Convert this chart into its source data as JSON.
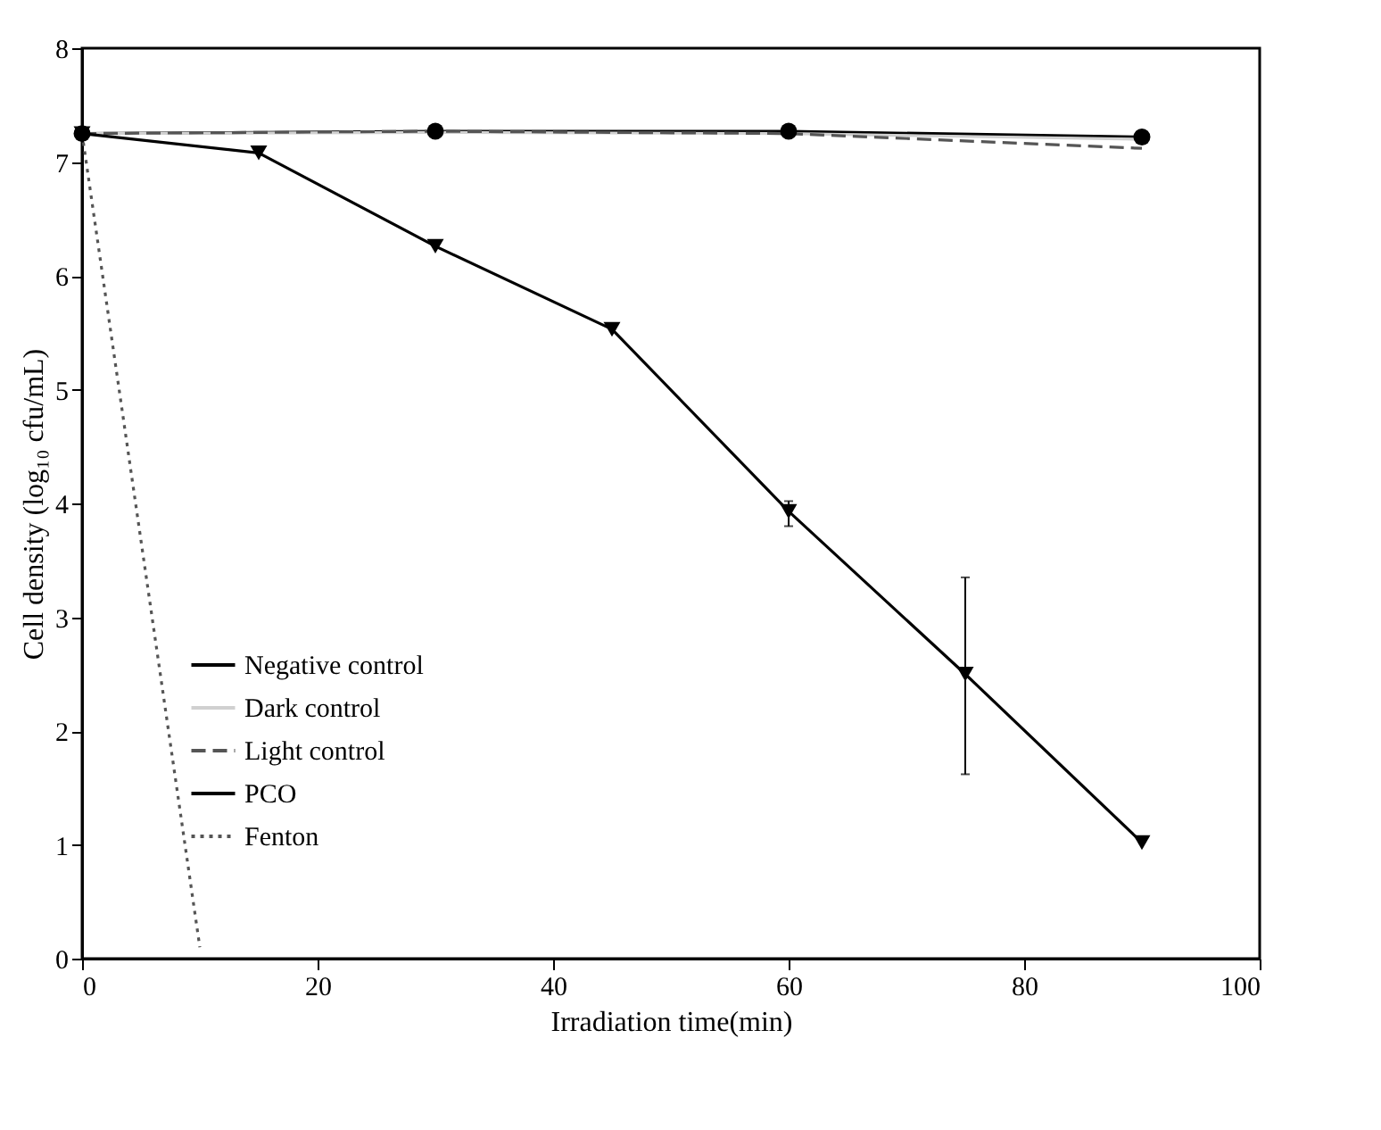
{
  "chart_data": {
    "type": "line",
    "xlabel": "Irradiation time(min)",
    "ylabel": "Cell density (log₁₀ cfu/mL)",
    "xlim": [
      0,
      100
    ],
    "xticks": [
      0,
      20,
      40,
      60,
      80,
      100
    ],
    "ylim": [
      0,
      8
    ],
    "yticks": [
      0,
      1,
      2,
      3,
      4,
      5,
      6,
      7,
      8
    ],
    "grid": false,
    "legend": "bottom left",
    "series": [
      {
        "name": "Negative control",
        "color": "#000000",
        "x": [
          0,
          30,
          60,
          90
        ],
        "values": [
          7.25,
          7.27,
          7.27,
          7.22
        ],
        "marker": "circle",
        "line_style": "solid"
      },
      {
        "name": "Dark control",
        "color": "#d0d0d0",
        "x": [
          0,
          30,
          60,
          90
        ],
        "values": [
          7.25,
          7.26,
          7.25,
          7.2
        ],
        "marker": "none",
        "line_style": "solid"
      },
      {
        "name": "Light control",
        "color": "#555555",
        "x": [
          0,
          30,
          60,
          90
        ],
        "values": [
          7.25,
          7.27,
          7.25,
          7.12
        ],
        "marker": "none",
        "line_style": "dashed"
      },
      {
        "name": "PCO",
        "color": "#000000",
        "x": [
          0,
          15,
          30,
          45,
          60,
          75,
          90
        ],
        "values": [
          7.25,
          7.08,
          6.26,
          5.53,
          3.93,
          2.5,
          1.02
        ],
        "marker": "triangle",
        "line_style": "solid",
        "errors": [
          null,
          null,
          null,
          null,
          [
            3.8,
            4.02
          ],
          [
            1.62,
            3.35
          ],
          null
        ]
      },
      {
        "name": "Fenton",
        "color": "#555555",
        "x": [
          0,
          10
        ],
        "values": [
          7.25,
          0.1
        ],
        "marker": "none",
        "line_style": "dotted"
      }
    ]
  }
}
